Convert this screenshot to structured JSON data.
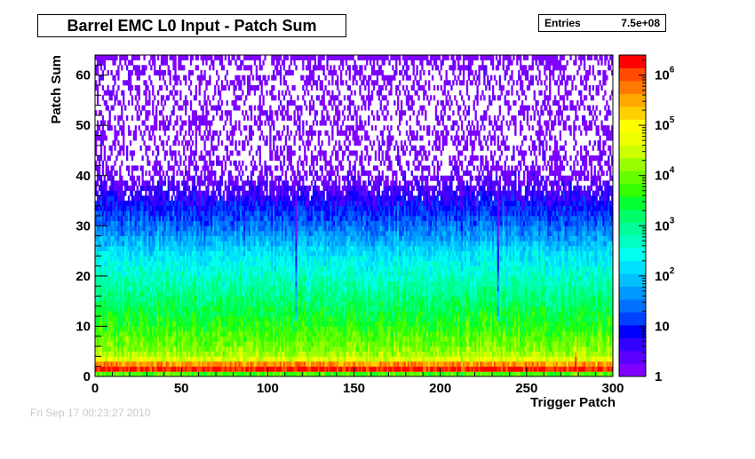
{
  "header": {
    "title": "Barrel EMC L0 Input - Patch Sum"
  },
  "stats": {
    "entries_label": "Entries",
    "entries_value": "7.5e+08"
  },
  "footer": {
    "timestamp_text": "Fri Sep 17 00:23:27 2010"
  },
  "chart_data": {
    "type": "heatmap",
    "title": "Barrel EMC L0 Input - Patch Sum",
    "xlabel": "Trigger Patch",
    "ylabel": "Patch Sum",
    "xlim": [
      0,
      300
    ],
    "ylim": [
      0,
      64
    ],
    "x_ticks": [
      0,
      50,
      100,
      150,
      200,
      250,
      300
    ],
    "x_tick_labels": [
      "0",
      "50",
      "100",
      "150",
      "200",
      "250",
      "300"
    ],
    "y_ticks": [
      0,
      10,
      20,
      30,
      40,
      50,
      60
    ],
    "y_tick_labels": [
      "0",
      "10",
      "20",
      "30",
      "40",
      "50",
      "60"
    ],
    "z_scale": "log",
    "zlim": [
      1,
      2500000
    ],
    "z_ticks": [
      1,
      10,
      100,
      1000,
      10000,
      100000,
      1000000
    ],
    "z_tick_labels": [
      {
        "base": "1",
        "exp": ""
      },
      {
        "base": "10",
        "exp": ""
      },
      {
        "base": "10",
        "exp": "2"
      },
      {
        "base": "10",
        "exp": "3"
      },
      {
        "base": "10",
        "exp": "4"
      },
      {
        "base": "10",
        "exp": "5"
      },
      {
        "base": "10",
        "exp": "6"
      }
    ],
    "grid": false,
    "palette": [
      "#7f00ff",
      "#5a00ff",
      "#3300ff",
      "#0000ff",
      "#0040ff",
      "#0070ff",
      "#0099ff",
      "#00c0ff",
      "#00e0ff",
      "#00ffee",
      "#00ffc0",
      "#00ff99",
      "#00ff66",
      "#00ff33",
      "#33ff00",
      "#66ff00",
      "#99ff00",
      "#ccff00",
      "#eeff00",
      "#ffff00",
      "#ffd000",
      "#ffa800",
      "#ff7a00",
      "#ff4a00",
      "#ff0000"
    ],
    "profile_y": [
      0,
      1,
      2,
      3,
      4,
      5,
      6,
      7,
      8,
      9,
      10,
      12,
      14,
      16,
      18,
      20,
      22,
      24,
      26,
      28,
      30,
      32,
      34,
      36,
      38,
      40,
      42,
      44,
      46,
      48,
      50,
      52,
      54,
      56,
      58,
      60,
      62,
      63
    ],
    "profile_log10_counts": [
      3.8,
      6.2,
      5.6,
      4.6,
      4.3,
      4.1,
      4.0,
      3.9,
      3.8,
      3.7,
      3.6,
      3.4,
      3.2,
      3.0,
      2.8,
      2.6,
      2.4,
      2.2,
      1.9,
      1.6,
      1.35,
      1.1,
      0.85,
      0.6,
      0.35,
      0.15,
      0.05,
      0.0,
      0.0,
      0.0,
      0.0,
      0.0,
      0.0,
      0.0,
      0.0,
      0.0,
      0.0,
      0.3
    ],
    "hot_columns": [
      {
        "x": 116,
        "note": "low"
      },
      {
        "x": 233,
        "note": "low"
      },
      {
        "x": 278,
        "note": "high"
      }
    ]
  }
}
